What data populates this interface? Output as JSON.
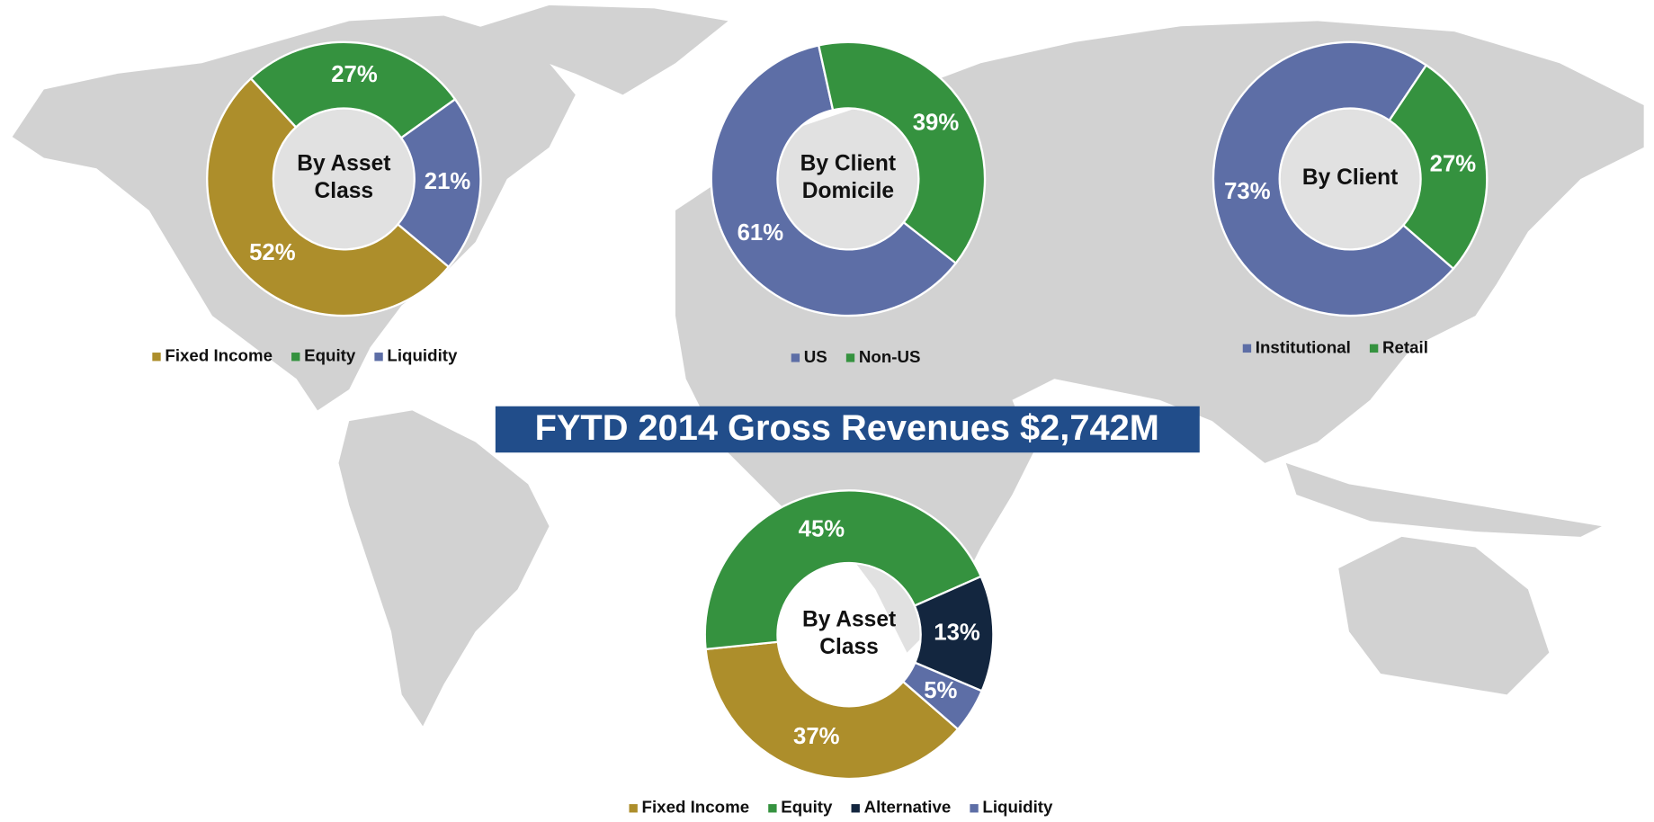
{
  "title": "FYTD 2014 Gross Revenues $2,742M",
  "chart_data": [
    {
      "type": "donut",
      "center_label": "By Asset Class",
      "categories": [
        "Fixed Income",
        "Equity",
        "Liquidity"
      ],
      "values": [
        52,
        27,
        21
      ],
      "value_labels": [
        "52%",
        "27%",
        "21%"
      ],
      "colors": [
        "#ad8e2b",
        "#35923f",
        "#5d6ea6"
      ]
    },
    {
      "type": "donut",
      "center_label": "By Client Domicile",
      "categories": [
        "US",
        "Non-US"
      ],
      "values": [
        61,
        39
      ],
      "value_labels": [
        "61%",
        "39%"
      ],
      "colors": [
        "#5d6ea6",
        "#35923f"
      ]
    },
    {
      "type": "donut",
      "center_label": "By Client",
      "categories": [
        "Institutional",
        "Retail"
      ],
      "values": [
        73,
        27
      ],
      "value_labels": [
        "73%",
        "27%"
      ],
      "colors": [
        "#5d6ea6",
        "#35923f"
      ]
    },
    {
      "type": "donut",
      "center_label": "By Asset Class",
      "categories": [
        "Fixed Income",
        "Equity",
        "Alternative",
        "Liquidity"
      ],
      "values": [
        37,
        45,
        13,
        5
      ],
      "value_labels": [
        "37%",
        "45%",
        "13%",
        "5%"
      ],
      "colors": [
        "#ad8e2b",
        "#35923f",
        "#13263f",
        "#5d6ea6"
      ]
    }
  ]
}
